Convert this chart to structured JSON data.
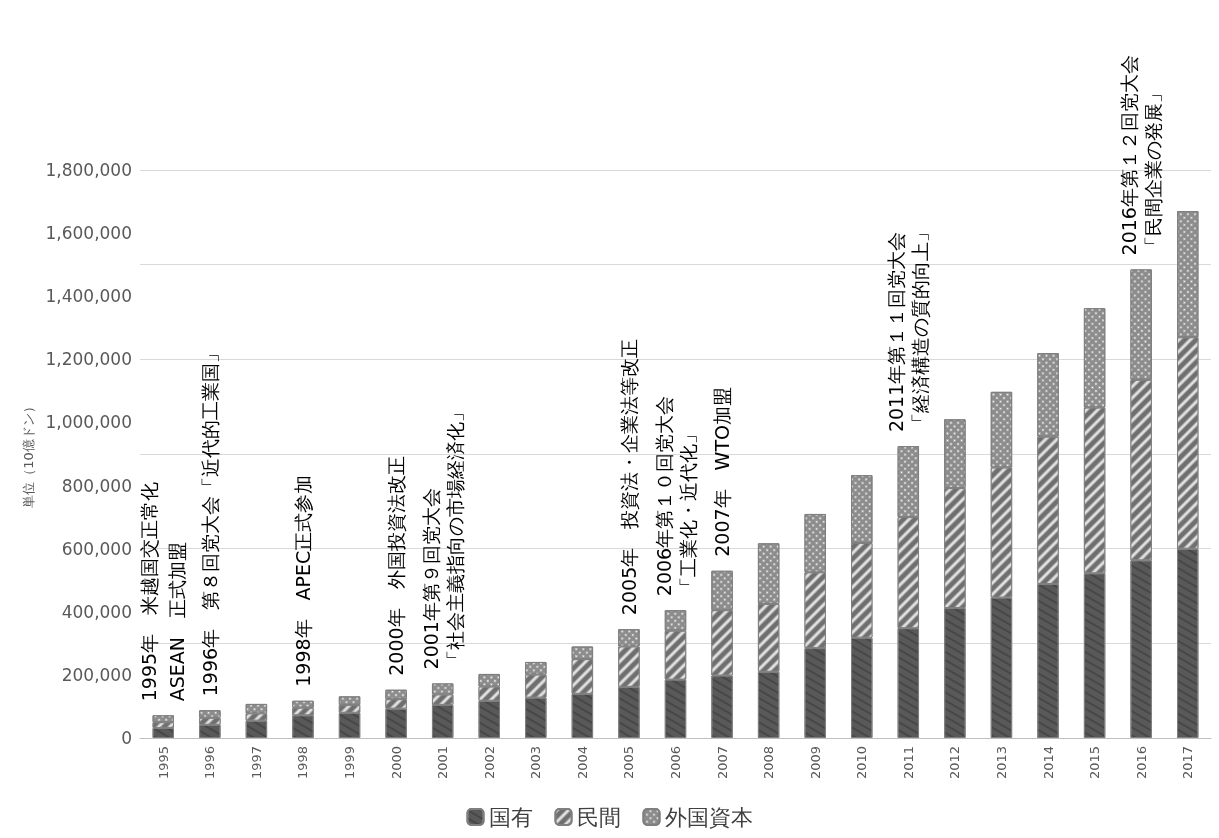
{
  "chart_data": {
    "type": "bar",
    "stacked": true,
    "ylabel": "単位（10億ドン）",
    "categories": [
      "1995",
      "1996",
      "1997",
      "1998",
      "1999",
      "2000",
      "2001",
      "2002",
      "2003",
      "2004",
      "2005",
      "2006",
      "2007",
      "2008",
      "2009",
      "2010",
      "2011",
      "2012",
      "2013",
      "2014",
      "2015",
      "2016",
      "2017"
    ],
    "series": [
      {
        "name": "国有",
        "color": "#595959",
        "values": [
          32000,
          42000,
          55000,
          72000,
          80000,
          93000,
          105000,
          118000,
          128000,
          140000,
          162000,
          185000,
          198000,
          210000,
          285000,
          318000,
          348000,
          412000,
          445000,
          488000,
          522000,
          563000,
          600000
        ]
      },
      {
        "name": "民間",
        "color": "#6f6f6f",
        "values": [
          18000,
          22000,
          23000,
          24000,
          25000,
          30000,
          33000,
          45000,
          73000,
          110000,
          128000,
          155000,
          207000,
          215000,
          240000,
          300000,
          352000,
          380000,
          412000,
          467000,
          525000,
          572000,
          670000
        ]
      },
      {
        "name": "外国資本",
        "color": "#8c8c8c",
        "values": [
          22000,
          24000,
          30000,
          22000,
          27000,
          30000,
          35000,
          40000,
          40000,
          40000,
          55000,
          65000,
          125000,
          192000,
          185000,
          215000,
          225000,
          218000,
          240000,
          265000,
          315000,
          350000,
          400000
        ]
      }
    ],
    "ylim": [
      0,
      1800000
    ],
    "yticks": [
      0,
      {
        "value": 200000,
        "label": "200,000"
      },
      {
        "value": 400000,
        "label": "400,000"
      },
      {
        "value": 600000,
        "label": "600,000"
      },
      {
        "value": 800000,
        "label": "800,000"
      },
      {
        "value": 1000000,
        "label": "1,000,000"
      },
      {
        "value": 1200000,
        "label": "1,200,000"
      },
      {
        "value": 1400000,
        "label": "1,400,000"
      },
      {
        "value": 1600000,
        "label": "1,600,000"
      },
      {
        "value": 1800000,
        "label": "1,800,000"
      }
    ],
    "grid": "y",
    "legend": "bottom",
    "annotations": [
      "1995年　米越国交正常化",
      "ASEAN　正式加盟",
      "1996年　第８回党大会「近代的工業国」",
      "1998年　APEC正式参加",
      "2000年　外国投資法改正",
      "2001年第９回党大会「社会主義指向の市場経済化」",
      "2005年　投資法・企業法等改正",
      "2006年第１０回党大会「工業化・近代化」",
      "2007年　WTO加盟",
      "2011年第１１回党大会「経済構造の質的向上」",
      "2016年第１２回党大会「民間企業の発展」"
    ]
  }
}
